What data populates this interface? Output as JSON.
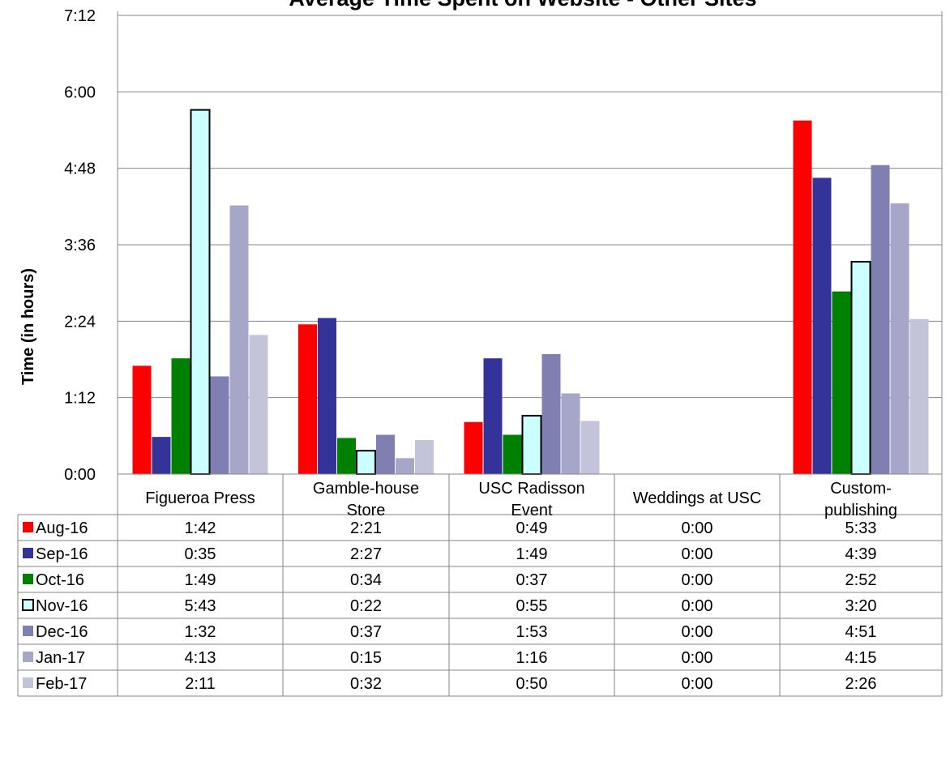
{
  "chart_data": {
    "type": "bar",
    "title": "Average Time Spent on Website - Other Sites",
    "ylabel": "Time (in hours)",
    "y_unit": "h:mm",
    "ylim": [
      "0:00",
      "7:12"
    ],
    "y_ticks": [
      "0:00",
      "1:12",
      "2:24",
      "3:36",
      "4:48",
      "6:00",
      "7:12"
    ],
    "grid": true,
    "legend": "data table",
    "categories": [
      [
        "Figueroa Press"
      ],
      [
        "Gamble-house",
        "Store"
      ],
      [
        "USC Radisson",
        "Event"
      ],
      [
        "Weddings at USC"
      ],
      [
        "Custom-",
        "publishing"
      ]
    ],
    "series": [
      {
        "name": "Aug-16",
        "color": "#ff0000",
        "values": [
          "1:42",
          "2:21",
          "0:49",
          "0:00",
          "5:33"
        ]
      },
      {
        "name": "Sep-16",
        "color": "#333399",
        "values": [
          "0:35",
          "2:27",
          "1:49",
          "0:00",
          "4:39"
        ]
      },
      {
        "name": "Oct-16",
        "color": "#008000",
        "values": [
          "1:49",
          "0:34",
          "0:37",
          "0:00",
          "2:52"
        ]
      },
      {
        "name": "Nov-16",
        "color": "#ccffff",
        "outlined": true,
        "values": [
          "5:43",
          "0:22",
          "0:55",
          "0:00",
          "3:20"
        ]
      },
      {
        "name": "Dec-16",
        "color": "#7f7fb2",
        "values": [
          "1:32",
          "0:37",
          "1:53",
          "0:00",
          "4:51"
        ]
      },
      {
        "name": "Jan-17",
        "color": "#a6a6c8",
        "values": [
          "4:13",
          "0:15",
          "1:16",
          "0:00",
          "4:15"
        ]
      },
      {
        "name": "Feb-17",
        "color": "#c3c3d9",
        "values": [
          "2:11",
          "0:32",
          "0:50",
          "0:00",
          "2:26"
        ]
      }
    ]
  }
}
